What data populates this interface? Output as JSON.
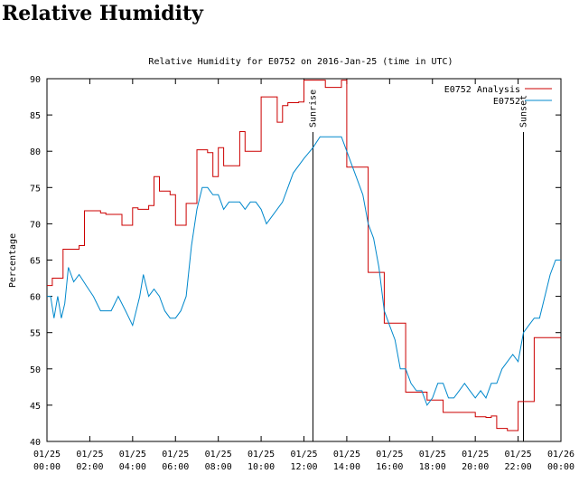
{
  "page_title": "Relative Humidity",
  "chart_data": {
    "type": "line",
    "title": "Relative Humidity for E0752 on 2016-Jan-25 (time in UTC)",
    "xlabel": "",
    "ylabel": "Percentage",
    "ylim": [
      40,
      90
    ],
    "yticks": [
      40,
      45,
      50,
      55,
      60,
      65,
      70,
      75,
      80,
      85,
      90
    ],
    "xlim": [
      0,
      24
    ],
    "xticks": [
      {
        "hour": 0,
        "date": "01/25",
        "time": "00:00"
      },
      {
        "hour": 2,
        "date": "01/25",
        "time": "02:00"
      },
      {
        "hour": 4,
        "date": "01/25",
        "time": "04:00"
      },
      {
        "hour": 6,
        "date": "01/25",
        "time": "06:00"
      },
      {
        "hour": 8,
        "date": "01/25",
        "time": "08:00"
      },
      {
        "hour": 10,
        "date": "01/25",
        "time": "10:00"
      },
      {
        "hour": 12,
        "date": "01/25",
        "time": "12:00"
      },
      {
        "hour": 14,
        "date": "01/25",
        "time": "14:00"
      },
      {
        "hour": 16,
        "date": "01/25",
        "time": "16:00"
      },
      {
        "hour": 18,
        "date": "01/25",
        "time": "18:00"
      },
      {
        "hour": 20,
        "date": "01/25",
        "time": "20:00"
      },
      {
        "hour": 22,
        "date": "01/25",
        "time": "22:00"
      },
      {
        "hour": 24,
        "date": "01/26",
        "time": "00:00"
      }
    ],
    "grid": false,
    "legend": "top-right",
    "annotations": [
      {
        "label": "Sunrise",
        "hour": 12.42
      },
      {
        "label": "Sunset",
        "hour": 22.25
      }
    ],
    "series": [
      {
        "name": "E0752 Analysis",
        "color": "#cc0000",
        "step": true,
        "points": [
          [
            0.0,
            61.5
          ],
          [
            0.25,
            62.5
          ],
          [
            0.5,
            62.5
          ],
          [
            0.75,
            66.5
          ],
          [
            1.25,
            66.5
          ],
          [
            1.5,
            67.0
          ],
          [
            1.75,
            71.8
          ],
          [
            2.25,
            71.8
          ],
          [
            2.5,
            71.5
          ],
          [
            2.75,
            71.3
          ],
          [
            3.25,
            71.3
          ],
          [
            3.5,
            69.8
          ],
          [
            3.75,
            69.8
          ],
          [
            4.0,
            72.2
          ],
          [
            4.25,
            72.0
          ],
          [
            4.5,
            72.0
          ],
          [
            4.75,
            72.5
          ],
          [
            5.0,
            76.5
          ],
          [
            5.25,
            74.5
          ],
          [
            5.5,
            74.5
          ],
          [
            5.75,
            74.0
          ],
          [
            6.0,
            69.8
          ],
          [
            6.25,
            69.8
          ],
          [
            6.5,
            72.8
          ],
          [
            6.75,
            72.8
          ],
          [
            7.0,
            80.2
          ],
          [
            7.25,
            80.2
          ],
          [
            7.5,
            79.8
          ],
          [
            7.75,
            76.5
          ],
          [
            8.0,
            80.5
          ],
          [
            8.25,
            78.0
          ],
          [
            8.5,
            78.0
          ],
          [
            8.75,
            78.0
          ],
          [
            9.0,
            82.7
          ],
          [
            9.25,
            80.0
          ],
          [
            9.5,
            80.0
          ],
          [
            9.75,
            80.0
          ],
          [
            10.0,
            87.5
          ],
          [
            10.25,
            87.5
          ],
          [
            10.5,
            87.5
          ],
          [
            10.75,
            84.0
          ],
          [
            11.0,
            86.3
          ],
          [
            11.25,
            86.7
          ],
          [
            11.5,
            86.7
          ],
          [
            11.75,
            86.8
          ],
          [
            12.0,
            89.8
          ],
          [
            12.25,
            89.8
          ],
          [
            12.5,
            89.8
          ],
          [
            12.75,
            89.8
          ],
          [
            13.0,
            88.8
          ],
          [
            13.25,
            88.8
          ],
          [
            13.5,
            88.8
          ],
          [
            13.75,
            89.8
          ],
          [
            14.0,
            77.8
          ],
          [
            14.25,
            77.8
          ],
          [
            14.5,
            77.8
          ],
          [
            14.75,
            77.8
          ],
          [
            15.0,
            63.3
          ],
          [
            15.25,
            63.3
          ],
          [
            15.5,
            63.3
          ],
          [
            15.75,
            56.3
          ],
          [
            16.0,
            56.3
          ],
          [
            16.25,
            56.3
          ],
          [
            16.5,
            56.3
          ],
          [
            16.75,
            46.8
          ],
          [
            17.0,
            46.8
          ],
          [
            17.25,
            46.8
          ],
          [
            17.5,
            46.8
          ],
          [
            17.75,
            45.7
          ],
          [
            18.0,
            45.7
          ],
          [
            18.25,
            45.7
          ],
          [
            18.5,
            44.0
          ],
          [
            18.75,
            44.0
          ],
          [
            19.0,
            44.0
          ],
          [
            19.25,
            44.0
          ],
          [
            19.5,
            44.0
          ],
          [
            19.75,
            44.0
          ],
          [
            20.0,
            43.4
          ],
          [
            20.25,
            43.4
          ],
          [
            20.5,
            43.3
          ],
          [
            20.75,
            43.5
          ],
          [
            21.0,
            41.8
          ],
          [
            21.25,
            41.8
          ],
          [
            21.5,
            41.5
          ],
          [
            21.75,
            41.5
          ],
          [
            22.0,
            45.5
          ],
          [
            22.25,
            45.5
          ],
          [
            22.5,
            45.5
          ],
          [
            22.75,
            54.3
          ],
          [
            23.0,
            54.3
          ],
          [
            23.25,
            54.3
          ],
          [
            23.5,
            54.3
          ],
          [
            23.75,
            54.3
          ]
        ]
      },
      {
        "name": "E0752",
        "color": "#0088cc",
        "step": false,
        "points": [
          [
            0.0,
            60.0
          ],
          [
            0.17,
            60.0
          ],
          [
            0.33,
            57.0
          ],
          [
            0.5,
            60.0
          ],
          [
            0.67,
            57.0
          ],
          [
            0.83,
            59.0
          ],
          [
            1.0,
            64.0
          ],
          [
            1.25,
            62.0
          ],
          [
            1.5,
            63.0
          ],
          [
            1.83,
            61.5
          ],
          [
            2.17,
            60.0
          ],
          [
            2.5,
            58.0
          ],
          [
            3.0,
            58.0
          ],
          [
            3.33,
            60.0
          ],
          [
            3.67,
            58.0
          ],
          [
            4.0,
            56.0
          ],
          [
            4.33,
            60.0
          ],
          [
            4.5,
            63.0
          ],
          [
            4.75,
            60.0
          ],
          [
            5.0,
            61.0
          ],
          [
            5.25,
            60.0
          ],
          [
            5.5,
            58.0
          ],
          [
            5.75,
            57.0
          ],
          [
            6.0,
            57.0
          ],
          [
            6.25,
            58.0
          ],
          [
            6.5,
            60.0
          ],
          [
            6.75,
            67.0
          ],
          [
            7.0,
            72.0
          ],
          [
            7.25,
            75.0
          ],
          [
            7.5,
            75.0
          ],
          [
            7.75,
            74.0
          ],
          [
            8.0,
            74.0
          ],
          [
            8.25,
            72.0
          ],
          [
            8.5,
            73.0
          ],
          [
            9.0,
            73.0
          ],
          [
            9.25,
            72.0
          ],
          [
            9.5,
            73.0
          ],
          [
            9.75,
            73.0
          ],
          [
            10.0,
            72.0
          ],
          [
            10.25,
            70.0
          ],
          [
            10.5,
            71.0
          ],
          [
            11.0,
            73.0
          ],
          [
            11.25,
            75.0
          ],
          [
            11.5,
            77.0
          ],
          [
            12.0,
            79.0
          ],
          [
            12.42,
            80.5
          ],
          [
            12.75,
            82.0
          ],
          [
            13.0,
            82.0
          ],
          [
            13.5,
            82.0
          ],
          [
            13.75,
            82.0
          ],
          [
            14.0,
            80.0
          ],
          [
            14.25,
            78.0
          ],
          [
            14.5,
            76.0
          ],
          [
            14.75,
            74.0
          ],
          [
            15.0,
            70.0
          ],
          [
            15.25,
            68.0
          ],
          [
            15.5,
            64.0
          ],
          [
            15.75,
            58.0
          ],
          [
            16.0,
            56.0
          ],
          [
            16.25,
            54.0
          ],
          [
            16.5,
            50.0
          ],
          [
            16.75,
            50.0
          ],
          [
            17.0,
            48.0
          ],
          [
            17.25,
            47.0
          ],
          [
            17.5,
            47.0
          ],
          [
            17.75,
            45.0
          ],
          [
            18.0,
            46.0
          ],
          [
            18.25,
            48.0
          ],
          [
            18.5,
            48.0
          ],
          [
            18.75,
            46.0
          ],
          [
            19.0,
            46.0
          ],
          [
            19.25,
            47.0
          ],
          [
            19.5,
            48.0
          ],
          [
            19.75,
            47.0
          ],
          [
            20.0,
            46.0
          ],
          [
            20.25,
            47.0
          ],
          [
            20.5,
            46.0
          ],
          [
            20.75,
            48.0
          ],
          [
            21.0,
            48.0
          ],
          [
            21.25,
            50.0
          ],
          [
            21.5,
            51.0
          ],
          [
            21.75,
            52.0
          ],
          [
            22.0,
            51.0
          ],
          [
            22.25,
            55.0
          ],
          [
            22.5,
            56.0
          ],
          [
            22.75,
            57.0
          ],
          [
            23.0,
            57.0
          ],
          [
            23.25,
            60.0
          ],
          [
            23.5,
            63.0
          ],
          [
            23.75,
            65.0
          ],
          [
            24.0,
            65.0
          ]
        ]
      }
    ]
  }
}
